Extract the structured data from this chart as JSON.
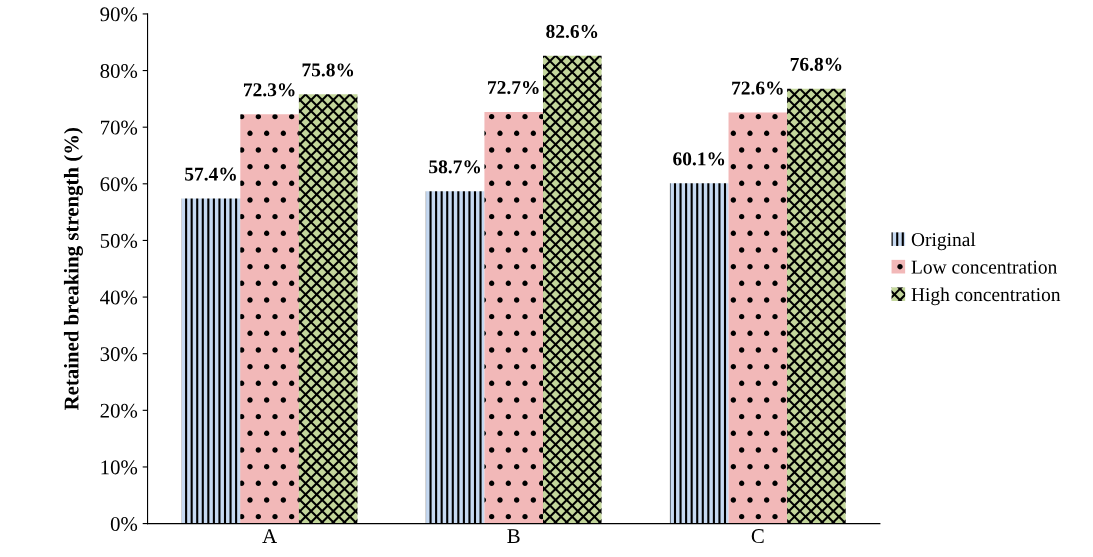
{
  "chart_data": {
    "type": "bar",
    "ylabel": "Retained breaking strength (%)",
    "categories": [
      "A",
      "B",
      "C"
    ],
    "series": [
      {
        "name": "Original",
        "color": "#c6d9f1",
        "values": [
          57.4,
          58.7,
          60.1
        ],
        "value_labels": [
          "57.4%",
          "58.7%",
          "60.1%"
        ]
      },
      {
        "name": "Low concentration",
        "color": "#f2b8b8",
        "values": [
          72.3,
          72.7,
          72.6
        ],
        "value_labels": [
          "72.3%",
          "72.7%",
          "72.6%"
        ]
      },
      {
        "name": "High concentration",
        "color": "#c3d69b",
        "values": [
          75.8,
          82.6,
          76.8
        ],
        "value_labels": [
          "75.8%",
          "82.6%",
          "76.8%"
        ]
      }
    ],
    "ylim": [
      0,
      90
    ],
    "yticks": [
      {
        "value": 0,
        "label": "0%"
      },
      {
        "value": 10,
        "label": "10%"
      },
      {
        "value": 20,
        "label": "20%"
      },
      {
        "value": 30,
        "label": "30%"
      },
      {
        "value": 40,
        "label": "40%"
      },
      {
        "value": 50,
        "label": "50%"
      },
      {
        "value": 60,
        "label": "60%"
      },
      {
        "value": 70,
        "label": "70%"
      },
      {
        "value": 80,
        "label": "80%"
      },
      {
        "value": 90,
        "label": "90%"
      }
    ],
    "grid": false,
    "legend": "right"
  }
}
